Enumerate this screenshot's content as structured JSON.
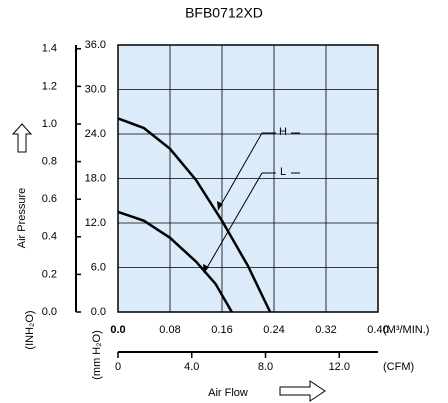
{
  "chart_data": {
    "type": "line",
    "title": "BFB0712XD",
    "x_label": "Air Flow",
    "y_label": "Air Pressure",
    "x_unit": "(M³/MIN.)",
    "x2_unit": "(CFM)",
    "y_unit": "(mm H₂O)",
    "y2_unit": "(INH₂O)",
    "xlim": [
      0,
      0.4
    ],
    "xticks": [
      {
        "value": 0,
        "label": "0.0"
      },
      0.08,
      0.16,
      0.24,
      0.32,
      {
        "value": 0.4,
        "label": "0.40"
      }
    ],
    "x2lim": [
      0,
      14.1
    ],
    "x2ticks": [
      0,
      {
        "value": 4,
        "label": "4.0"
      },
      {
        "value": 8,
        "label": "8.0"
      },
      {
        "value": 12,
        "label": "12.0"
      }
    ],
    "ylim": [
      0,
      36
    ],
    "yticks": [
      {
        "value": 0,
        "label": "0.0"
      },
      {
        "value": 6,
        "label": "6.0"
      },
      {
        "value": 12,
        "label": "12.0"
      },
      {
        "value": 18,
        "label": "18.0"
      },
      {
        "value": 24,
        "label": "24.0"
      },
      {
        "value": 30,
        "label": "30.0"
      },
      {
        "value": 36,
        "label": "36.0"
      }
    ],
    "y2lim": [
      0,
      1.42
    ],
    "y2ticks": [
      {
        "value": 0,
        "label": "0.0"
      },
      0.2,
      0.4,
      0.6,
      0.8,
      {
        "value": 1,
        "label": "1.0"
      },
      1.2,
      1.4
    ],
    "grid": true,
    "background": "#dcebfa",
    "series": [
      {
        "name": "H",
        "color": "#000000",
        "x": [
          0,
          0.04,
          0.08,
          0.12,
          0.16,
          0.2,
          0.234
        ],
        "values": [
          26.1,
          24.8,
          22.0,
          17.8,
          12.3,
          6.2,
          0
        ]
      },
      {
        "name": "L",
        "color": "#000000",
        "x": [
          0,
          0.04,
          0.08,
          0.12,
          0.15,
          0.175
        ],
        "values": [
          13.5,
          12.3,
          10.0,
          6.8,
          3.8,
          0
        ]
      }
    ]
  }
}
